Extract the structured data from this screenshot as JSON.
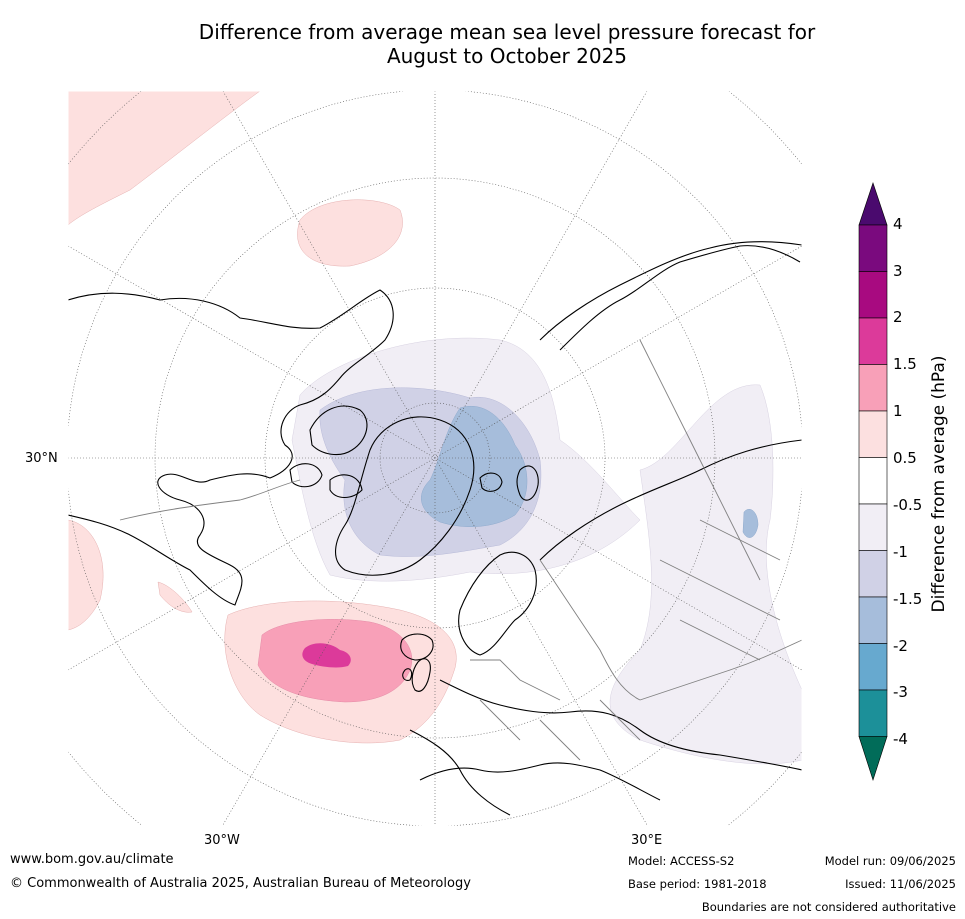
{
  "title": {
    "line1": "Difference from average mean sea level pressure forecast for",
    "line2": "August to October 2025"
  },
  "map": {
    "projection": "north-polar-stereographic",
    "region": "Northern Hemisphere: North Atlantic, Arctic, Europe and Asia",
    "lat_labels": [
      "30°N"
    ],
    "lon_labels": [
      "30°W",
      "30°E"
    ],
    "colors": {
      "land": "#ffffff",
      "coast": "#000000",
      "borders": "#808080",
      "grid": "#555555"
    }
  },
  "legend": {
    "title": "Difference from average (hPa)",
    "ticks": [
      "4",
      "3",
      "2",
      "1.5",
      "1",
      "0.5",
      "-0.5",
      "-1",
      "-1.5",
      "-2",
      "-3",
      "-4"
    ],
    "colors": [
      "#4a0a6e",
      "#7a0a7e",
      "#a80a80",
      "#dc3a9a",
      "#f8a0b8",
      "#fce0e0",
      "#ffffff",
      "#f1eef5",
      "#d0d1e6",
      "#a6bddb",
      "#67a9cf",
      "#1c9099",
      "#016c59"
    ]
  },
  "footer": {
    "website": "www.bom.gov.au/climate",
    "copyright": "© Commonwealth of Australia 2025, Australian Bureau of Meteorology",
    "model": "Model: ACCESS-S2",
    "base_period": "Base period: 1981-2018",
    "model_run": "Model run: 09/06/2025",
    "issued": "Issued: 11/06/2025",
    "disclaimer": "Boundaries are not considered authoritative"
  }
}
